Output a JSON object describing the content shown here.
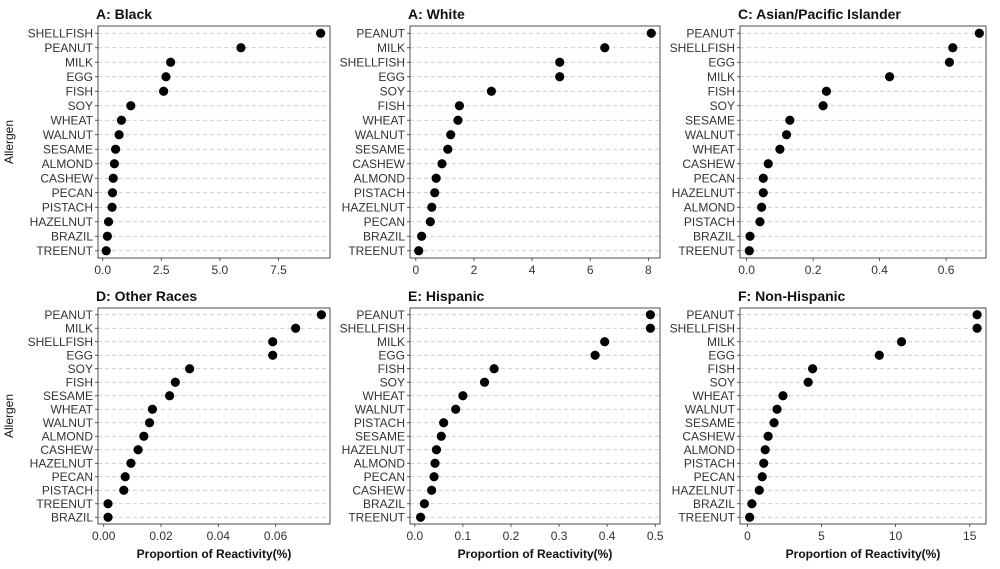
{
  "chart_data": [
    {
      "type": "scatter",
      "title": "A: Black",
      "xlabel": "",
      "ylabel": "Allergen",
      "xlim": [
        -0.2,
        9.7
      ],
      "xticks": [
        0,
        2.5,
        5,
        7.5
      ],
      "xtick_labels": [
        "0.0",
        "2.5",
        "5.0",
        "7.5"
      ],
      "categories": [
        "SHELLFISH",
        "PEANUT",
        "MILK",
        "EGG",
        "FISH",
        "SOY",
        "WHEAT",
        "WALNUT",
        "SESAME",
        "ALMOND",
        "CASHEW",
        "PECAN",
        "PISTACH",
        "HAZELNUT",
        "BRAZIL",
        "TREENUT"
      ],
      "values": [
        9.3,
        5.9,
        2.9,
        2.7,
        2.6,
        1.2,
        0.8,
        0.7,
        0.55,
        0.5,
        0.45,
        0.42,
        0.4,
        0.25,
        0.2,
        0.15
      ]
    },
    {
      "type": "scatter",
      "title": "A: White",
      "xlabel": "",
      "ylabel": "",
      "xlim": [
        -0.2,
        8.4
      ],
      "xticks": [
        0,
        2,
        4,
        6,
        8
      ],
      "xtick_labels": [
        "0",
        "2",
        "4",
        "6",
        "8"
      ],
      "categories": [
        "PEANUT",
        "MILK",
        "SHELLFISH",
        "EGG",
        "SOY",
        "FISH",
        "WHEAT",
        "WALNUT",
        "SESAME",
        "CASHEW",
        "ALMOND",
        "PISTACH",
        "HAZELNUT",
        "PECAN",
        "BRAZIL",
        "TREENUT"
      ],
      "values": [
        8.1,
        6.5,
        4.95,
        4.95,
        2.6,
        1.5,
        1.45,
        1.2,
        1.1,
        0.9,
        0.7,
        0.65,
        0.55,
        0.5,
        0.2,
        0.1
      ]
    },
    {
      "type": "scatter",
      "title": "C: Asian/Pacific Islander",
      "xlabel": "",
      "ylabel": "",
      "xlim": [
        -0.02,
        0.72
      ],
      "xticks": [
        0,
        0.2,
        0.4,
        0.6
      ],
      "xtick_labels": [
        "0.0",
        "0.2",
        "0.4",
        "0.6"
      ],
      "categories": [
        "PEANUT",
        "SHELLFISH",
        "EGG",
        "MILK",
        "FISH",
        "SOY",
        "SESAME",
        "WALNUT",
        "WHEAT",
        "CASHEW",
        "PECAN",
        "HAZELNUT",
        "ALMOND",
        "PISTACH",
        "BRAZIL",
        "TREENUT"
      ],
      "values": [
        0.7,
        0.62,
        0.61,
        0.43,
        0.24,
        0.23,
        0.13,
        0.12,
        0.1,
        0.065,
        0.05,
        0.05,
        0.045,
        0.04,
        0.01,
        0.008
      ]
    },
    {
      "type": "scatter",
      "title": "D: Other Races",
      "xlabel": "Proportion of Reactivity(%)",
      "ylabel": "Allergen",
      "xlim": [
        -0.002,
        0.079
      ],
      "xticks": [
        0,
        0.02,
        0.04,
        0.06
      ],
      "xtick_labels": [
        "0.00",
        "0.02",
        "0.04",
        "0.06"
      ],
      "categories": [
        "PEANUT",
        "MILK",
        "SHELLFISH",
        "EGG",
        "SOY",
        "FISH",
        "SESAME",
        "WHEAT",
        "WALNUT",
        "ALMOND",
        "CASHEW",
        "HAZELNUT",
        "PECAN",
        "PISTACH",
        "TREENUT",
        "BRAZIL"
      ],
      "values": [
        0.076,
        0.067,
        0.059,
        0.059,
        0.03,
        0.025,
        0.023,
        0.017,
        0.016,
        0.014,
        0.012,
        0.0095,
        0.0075,
        0.007,
        0.0015,
        0.0015
      ]
    },
    {
      "type": "scatter",
      "title": "E: Hispanic",
      "xlabel": "Proportion of Reactivity(%)",
      "ylabel": "",
      "xlim": [
        -0.01,
        0.51
      ],
      "xticks": [
        0,
        0.1,
        0.2,
        0.3,
        0.4,
        0.5
      ],
      "xtick_labels": [
        "0.0",
        "0.1",
        "0.2",
        "0.3",
        "0.4",
        "0.5"
      ],
      "categories": [
        "PEANUT",
        "SHELLFISH",
        "MILK",
        "EGG",
        "FISH",
        "SOY",
        "WHEAT",
        "WALNUT",
        "PISTACH",
        "SESAME",
        "HAZELNUT",
        "ALMOND",
        "PECAN",
        "CASHEW",
        "BRAZIL",
        "TREENUT"
      ],
      "values": [
        0.49,
        0.49,
        0.395,
        0.375,
        0.165,
        0.145,
        0.1,
        0.085,
        0.06,
        0.055,
        0.045,
        0.042,
        0.04,
        0.035,
        0.02,
        0.012
      ]
    },
    {
      "type": "scatter",
      "title": "F: Non-Hispanic",
      "xlabel": "Proportion of Reactivity(%)",
      "ylabel": "",
      "xlim": [
        -0.5,
        16.1
      ],
      "xticks": [
        0,
        5,
        10,
        15
      ],
      "xtick_labels": [
        "0",
        "5",
        "10",
        "15"
      ],
      "categories": [
        "PEANUT",
        "SHELLFISH",
        "MILK",
        "EGG",
        "FISH",
        "SOY",
        "WHEAT",
        "WALNUT",
        "SESAME",
        "CASHEW",
        "ALMOND",
        "PISTACH",
        "PECAN",
        "HAZELNUT",
        "BRAZIL",
        "TREENUT"
      ],
      "values": [
        15.5,
        15.5,
        10.4,
        8.9,
        4.4,
        4.1,
        2.4,
        2.0,
        1.8,
        1.4,
        1.2,
        1.1,
        1.0,
        0.8,
        0.3,
        0.15
      ]
    }
  ]
}
